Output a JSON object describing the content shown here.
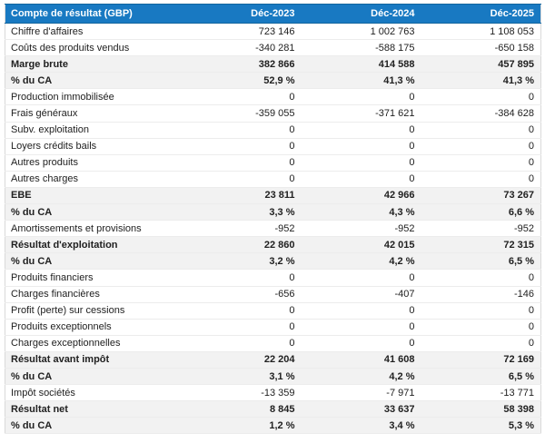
{
  "table": {
    "header": {
      "label": "Compte de résultat (GBP)",
      "periods": [
        "Déc-2023",
        "Déc-2024",
        "Déc-2025"
      ]
    },
    "rows": [
      {
        "label": "Chiffre d'affaires",
        "values": [
          "723 146",
          "1 002 763",
          "1 108 053"
        ],
        "emphasis": false
      },
      {
        "label": "Coûts des produits vendus",
        "values": [
          "-340 281",
          "-588 175",
          "-650 158"
        ],
        "emphasis": false
      },
      {
        "label": "Marge brute",
        "values": [
          "382 866",
          "414 588",
          "457 895"
        ],
        "emphasis": true
      },
      {
        "label": "% du CA",
        "values": [
          "52,9 %",
          "41,3 %",
          "41,3 %"
        ],
        "emphasis": true
      },
      {
        "label": "Production immobilisée",
        "values": [
          "0",
          "0",
          "0"
        ],
        "emphasis": false
      },
      {
        "label": "Frais généraux",
        "values": [
          "-359 055",
          "-371 621",
          "-384 628"
        ],
        "emphasis": false
      },
      {
        "label": "Subv. exploitation",
        "values": [
          "0",
          "0",
          "0"
        ],
        "emphasis": false
      },
      {
        "label": "Loyers crédits bails",
        "values": [
          "0",
          "0",
          "0"
        ],
        "emphasis": false
      },
      {
        "label": "Autres produits",
        "values": [
          "0",
          "0",
          "0"
        ],
        "emphasis": false
      },
      {
        "label": "Autres charges",
        "values": [
          "0",
          "0",
          "0"
        ],
        "emphasis": false
      },
      {
        "label": "EBE",
        "values": [
          "23 811",
          "42 966",
          "73 267"
        ],
        "emphasis": true
      },
      {
        "label": "% du CA",
        "values": [
          "3,3 %",
          "4,3 %",
          "6,6 %"
        ],
        "emphasis": true
      },
      {
        "label": "Amortissements et provisions",
        "values": [
          "-952",
          "-952",
          "-952"
        ],
        "emphasis": false
      },
      {
        "label": "Résultat d'exploitation",
        "values": [
          "22 860",
          "42 015",
          "72 315"
        ],
        "emphasis": true
      },
      {
        "label": "% du CA",
        "values": [
          "3,2 %",
          "4,2 %",
          "6,5 %"
        ],
        "emphasis": true
      },
      {
        "label": "Produits financiers",
        "values": [
          "0",
          "0",
          "0"
        ],
        "emphasis": false
      },
      {
        "label": "Charges financières",
        "values": [
          "-656",
          "-407",
          "-146"
        ],
        "emphasis": false
      },
      {
        "label": "Profit (perte) sur cessions",
        "values": [
          "0",
          "0",
          "0"
        ],
        "emphasis": false
      },
      {
        "label": "Produits exceptionnels",
        "values": [
          "0",
          "0",
          "0"
        ],
        "emphasis": false
      },
      {
        "label": "Charges exceptionnelles",
        "values": [
          "0",
          "0",
          "0"
        ],
        "emphasis": false
      },
      {
        "label": "Résultat avant impôt",
        "values": [
          "22 204",
          "41 608",
          "72 169"
        ],
        "emphasis": true
      },
      {
        "label": "% du CA",
        "values": [
          "3,1 %",
          "4,2 %",
          "6,5 %"
        ],
        "emphasis": true
      },
      {
        "label": "Impôt sociétés",
        "values": [
          "-13 359",
          "-7 971",
          "-13 771"
        ],
        "emphasis": false
      },
      {
        "label": "Résultat net",
        "values": [
          "8 845",
          "33 637",
          "58 398"
        ],
        "emphasis": true
      },
      {
        "label": "% du CA",
        "values": [
          "1,2 %",
          "3,4 %",
          "5,3 %"
        ],
        "emphasis": true
      }
    ]
  },
  "colors": {
    "header_bg": "#1879c2",
    "header_border": "#13659e",
    "header_text": "#ffffff",
    "emphasis_row_bg": "#f2f2f2",
    "row_border": "#ececec",
    "outer_border": "#d9d9d9",
    "text": "#212121"
  }
}
